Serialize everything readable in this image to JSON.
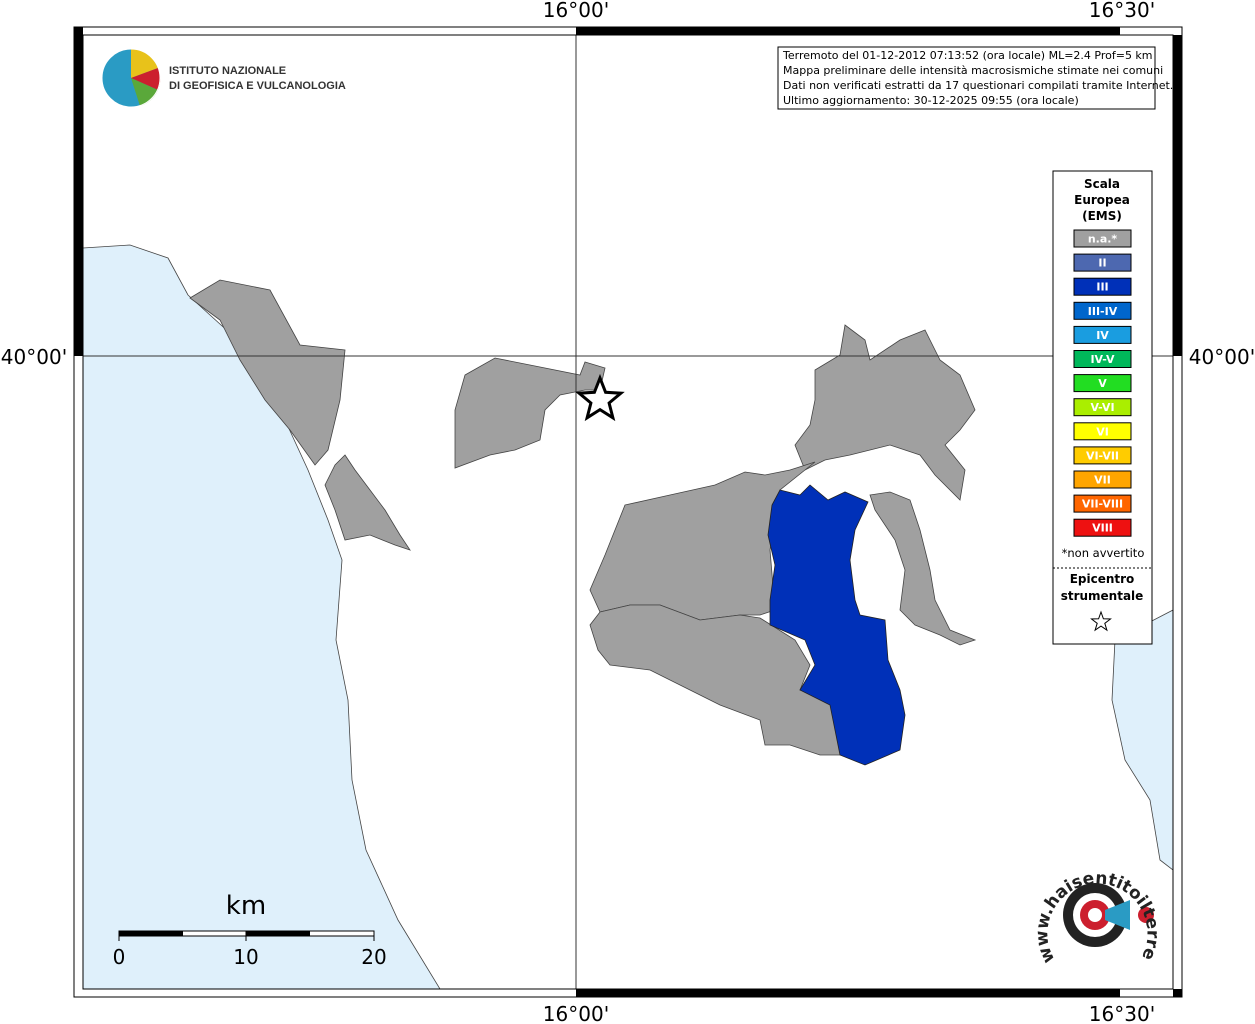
{
  "map": {
    "lon_labels": [
      "16°00'",
      "16°30'"
    ],
    "lat_label": "40°00'",
    "logo": [
      "ISTITUTO NAZIONALE",
      "DI GEOFISICA E VULCANOLOGIA"
    ],
    "info": [
      "Terremoto del 01-12-2012 07:13:52 (ora locale) ML=2.4 Prof=5 km",
      "Mappa preliminare delle intensità macrosismiche stimate nei comuni",
      "Dati non verificati estratti da 17 questionari compilati tramite Internet.",
      "Ultimo aggiornamento: 30-12-2025 09:55 (ora locale)"
    ],
    "legend": {
      "title": [
        "Scala",
        "Europea",
        "(EMS)"
      ],
      "items": [
        {
          "label": "n.a.*",
          "color": "#a0a0a0"
        },
        {
          "label": "II",
          "color": "#4d68b0"
        },
        {
          "label": "III",
          "color": "#0030b8"
        },
        {
          "label": "III-IV",
          "color": "#0066cc"
        },
        {
          "label": "IV",
          "color": "#1a9de0"
        },
        {
          "label": "IV-V",
          "color": "#00b85a"
        },
        {
          "label": "V",
          "color": "#22dd22"
        },
        {
          "label": "V-VI",
          "color": "#aaee00"
        },
        {
          "label": "VI",
          "color": "#ffff00"
        },
        {
          "label": "VI-VII",
          "color": "#ffcc00"
        },
        {
          "label": "VII",
          "color": "#ffa500"
        },
        {
          "label": "VII-VIII",
          "color": "#ff6600"
        },
        {
          "label": "VIII",
          "color": "#ee1111"
        }
      ],
      "note": "*non avvertito",
      "epicenter": [
        "Epicentro",
        "strumentale"
      ]
    },
    "scale": {
      "unit": "km",
      "ticks": [
        "0",
        "10",
        "20"
      ]
    },
    "site": "www.haisentitoilterremoto.it"
  }
}
